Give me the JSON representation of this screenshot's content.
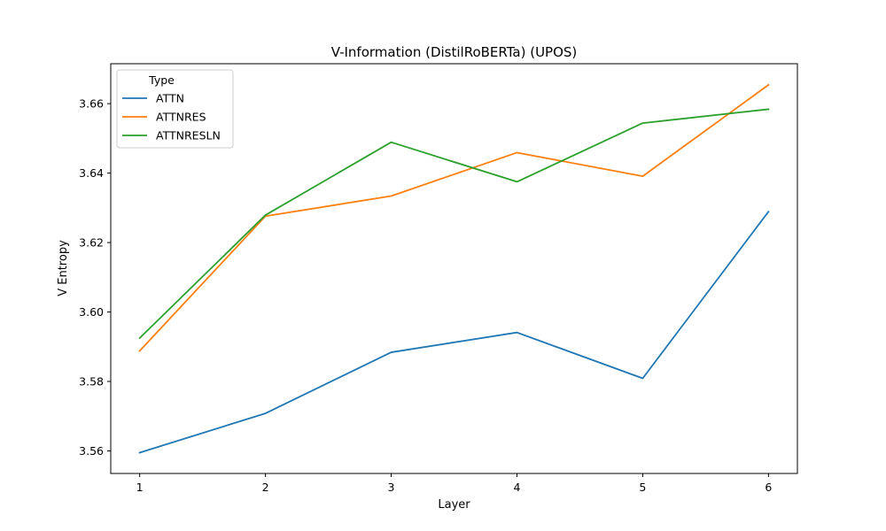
{
  "chart_data": {
    "type": "line",
    "title": "V-Information (DistilRoBERTa) (UPOS)",
    "xlabel": "Layer",
    "ylabel": "V Entropy",
    "x": [
      1,
      2,
      3,
      4,
      5,
      6
    ],
    "xticks": [
      "1",
      "2",
      "3",
      "4",
      "5",
      "6"
    ],
    "yticks": [
      "3.56",
      "3.58",
      "3.60",
      "3.62",
      "3.64",
      "3.66"
    ],
    "xlim": [
      0.77,
      6.23
    ],
    "ylim": [
      3.5535,
      3.6715
    ],
    "grid": false,
    "legend": {
      "title": "Type",
      "placement": "top-left"
    },
    "series": [
      {
        "name": "ATTN",
        "color": "#1f77b4",
        "values": [
          3.5595,
          3.5708,
          3.5884,
          3.5941,
          3.5809,
          3.6289
        ]
      },
      {
        "name": "ATTNRES",
        "color": "#ff7f0e",
        "values": [
          3.5888,
          3.6276,
          3.6334,
          3.6459,
          3.6391,
          3.6654
        ]
      },
      {
        "name": "ATTNRESLN",
        "color": "#2ca02c",
        "values": [
          3.5925,
          3.6279,
          3.6489,
          3.6375,
          3.6544,
          3.6584
        ]
      }
    ]
  }
}
